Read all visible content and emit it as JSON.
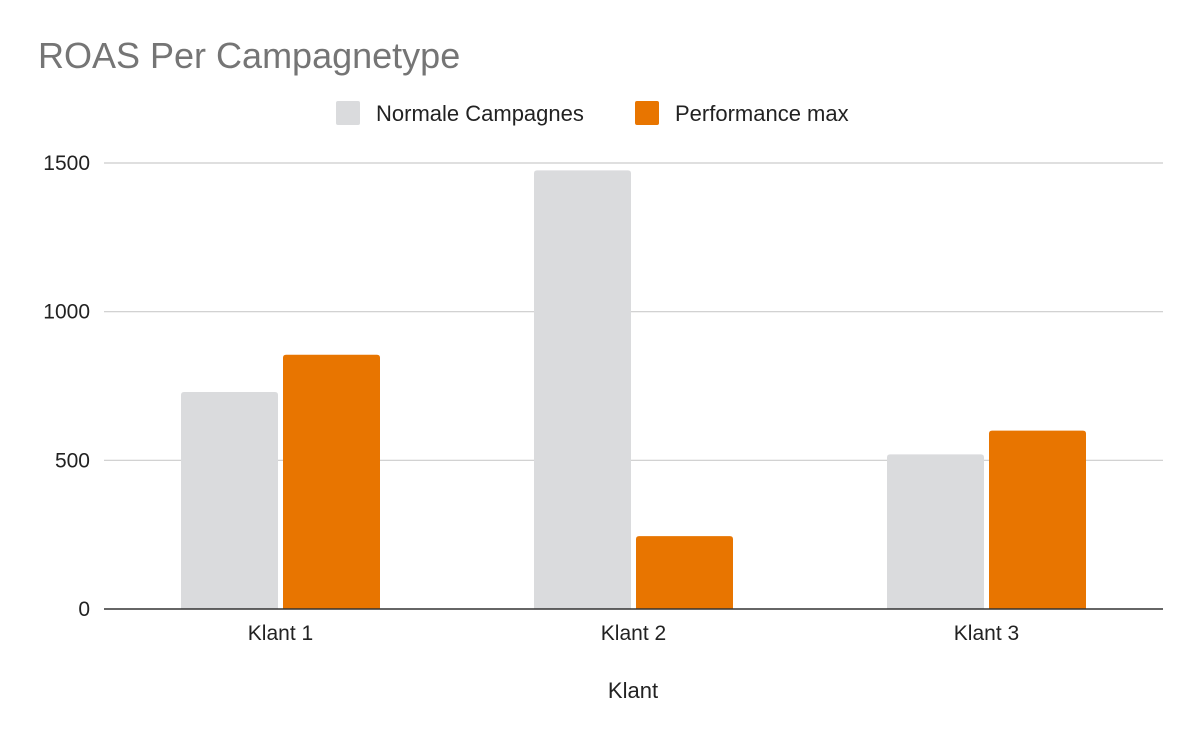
{
  "chart_data": {
    "type": "bar",
    "title": "ROAS Per Campagnetype",
    "xlabel": "Klant",
    "ylabel": "",
    "categories": [
      "Klant 1",
      "Klant 2",
      "Klant 3"
    ],
    "series": [
      {
        "name": "Normale Campagnes",
        "color": "#dadbdd",
        "values": [
          730,
          1475,
          520
        ]
      },
      {
        "name": "Performance max",
        "color": "#e87500",
        "values": [
          855,
          245,
          600
        ]
      }
    ],
    "ylim": [
      0,
      1500
    ],
    "yticks": [
      "0",
      "500",
      "1000",
      "1500"
    ],
    "grid": true,
    "legend_position": "top-center"
  }
}
